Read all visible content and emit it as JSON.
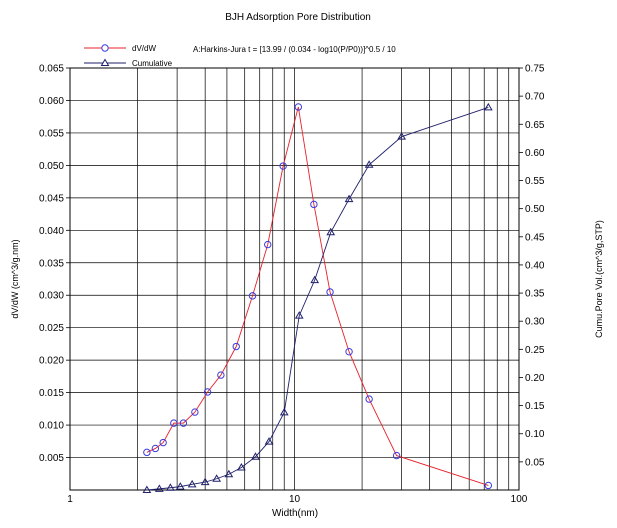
{
  "chart_data": {
    "type": "line",
    "title": "BJH Adsorption Pore Distribution",
    "subtitle": "A:Harkins-Jura  t = [13.99 / (0.034 - log10(P/P0))]^0.5 / 10",
    "xlabel": "Width(nm)",
    "ylabel_left": "dV/dW (cm^3/g.nm)",
    "ylabel_right": "Cumu.Pore Vol.(cm^3/g,STP)",
    "x_scale": "log",
    "xlim": [
      1,
      100
    ],
    "ylim_left": [
      0,
      0.065
    ],
    "ylim_right": [
      0,
      0.75
    ],
    "grid": true,
    "legend_position": "top-left",
    "x_ticks": [
      "1",
      "10",
      "100"
    ],
    "y_left_ticks": [
      "0.005",
      "0.010",
      "0.015",
      "0.020",
      "0.025",
      "0.030",
      "0.035",
      "0.040",
      "0.045",
      "0.050",
      "0.055",
      "0.060",
      "0.065"
    ],
    "y_right_ticks": [
      "0.05",
      "0.10",
      "0.15",
      "0.20",
      "0.25",
      "0.30",
      "0.35",
      "0.40",
      "0.45",
      "0.50",
      "0.55",
      "0.60",
      "0.65",
      "0.70",
      "0.75"
    ],
    "series": [
      {
        "name": "dV/dW",
        "axis": "left",
        "marker": "circle",
        "color": "#e8202a",
        "marker_color": "#3b3bdc",
        "x": [
          2.2,
          2.4,
          2.6,
          2.9,
          3.2,
          3.6,
          4.1,
          4.7,
          5.5,
          6.5,
          7.6,
          8.9,
          10.4,
          12.2,
          14.4,
          17.5,
          21.5,
          28.5,
          73
        ],
        "y": [
          0.0058,
          0.0064,
          0.0073,
          0.0103,
          0.0103,
          0.012,
          0.0151,
          0.0177,
          0.0221,
          0.0299,
          0.0378,
          0.0499,
          0.059,
          0.044,
          0.0305,
          0.0213,
          0.014,
          0.0053,
          0.0007
        ]
      },
      {
        "name": "Cumulative",
        "axis": "right",
        "marker": "triangle",
        "color": "#1f1f6b",
        "marker_color": "#1f1f6b",
        "x": [
          2.2,
          2.5,
          2.8,
          3.1,
          3.5,
          4.0,
          4.5,
          5.1,
          5.8,
          6.7,
          7.7,
          9.0,
          10.5,
          12.3,
          14.5,
          17.5,
          21.5,
          30,
          73
        ],
        "y": [
          0.0,
          0.002,
          0.004,
          0.006,
          0.01,
          0.014,
          0.02,
          0.028,
          0.04,
          0.059,
          0.086,
          0.138,
          0.31,
          0.373,
          0.458,
          0.517,
          0.578,
          0.628,
          0.68
        ]
      }
    ]
  }
}
